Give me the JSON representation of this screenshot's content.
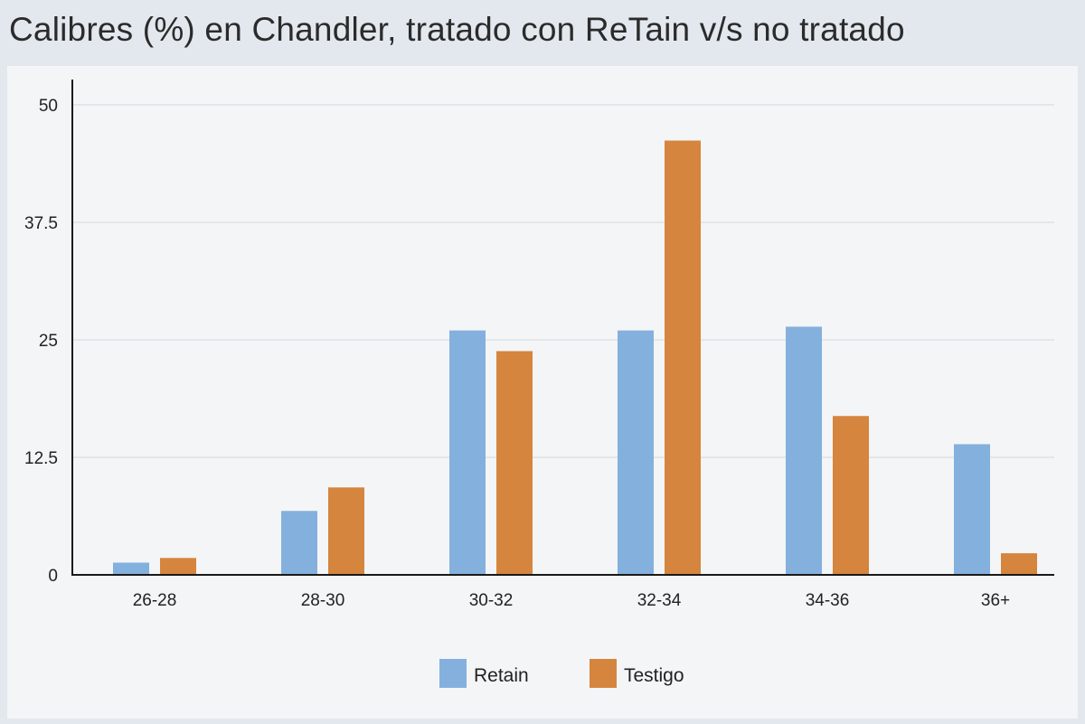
{
  "chart_data": {
    "type": "bar",
    "title": "Calibres (%) en Chandler, tratado con ReTain v/s no tratado",
    "xlabel": "",
    "ylabel": "",
    "categories": [
      "26-28",
      "28-30",
      "30-32",
      "32-34",
      "34-36",
      "36+"
    ],
    "series": [
      {
        "name": "Retain",
        "color": "#84b0dd",
        "values": [
          1.3,
          6.8,
          26.0,
          26.0,
          26.4,
          13.9
        ]
      },
      {
        "name": "Testigo",
        "color": "#d5853e",
        "values": [
          1.8,
          9.3,
          23.8,
          46.2,
          16.9,
          2.3
        ]
      }
    ],
    "ylim": [
      0,
      50
    ],
    "yticks": [
      "0",
      "12.5",
      "25",
      "37.5",
      "50"
    ],
    "grid": true,
    "legend_position": "bottom-center"
  }
}
